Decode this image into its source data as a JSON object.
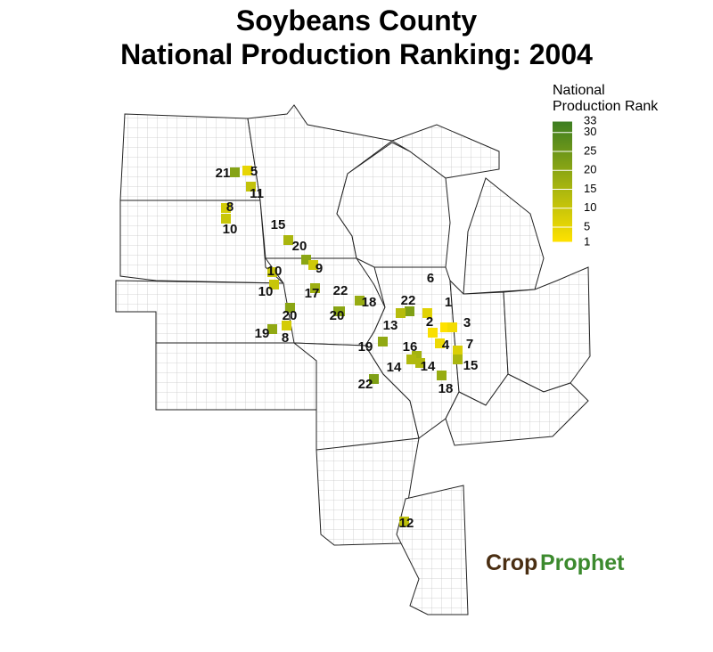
{
  "chart_data": {
    "type": "choropleth",
    "title": [
      "Soybeans County",
      "National Production Ranking: 2004"
    ],
    "legend_title": [
      "National",
      "Production Rank"
    ],
    "colors": [
      "#FFE200",
      "#3C7D22"
    ],
    "clim": [
      1,
      33
    ],
    "cticks": [
      1,
      5,
      10,
      15,
      20,
      25,
      30,
      33
    ],
    "values": [
      21,
      5,
      11,
      8,
      10,
      15,
      20,
      9,
      10,
      10,
      17,
      22,
      20,
      18,
      22,
      6,
      1,
      2,
      3,
      13,
      20,
      19,
      8,
      19,
      16,
      4,
      7,
      14,
      14,
      15,
      18,
      22,
      12
    ],
    "logo": [
      "Crop",
      "Prophet"
    ]
  }
}
